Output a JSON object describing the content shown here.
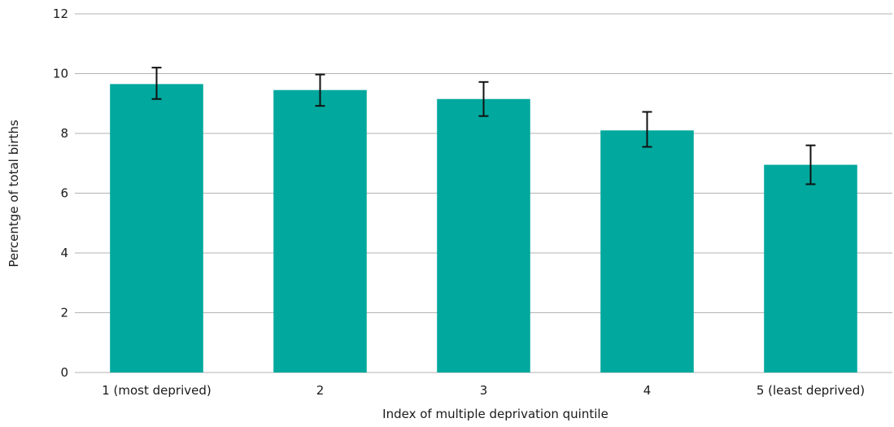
{
  "chart_data": {
    "type": "bar",
    "categories": [
      "1 (most deprived)",
      "2",
      "3",
      "4",
      "5 (least deprived)"
    ],
    "values": [
      9.65,
      9.45,
      9.15,
      8.1,
      6.95
    ],
    "error_low": [
      9.15,
      8.92,
      8.58,
      7.55,
      6.3
    ],
    "error_high": [
      10.2,
      9.97,
      9.72,
      8.72,
      7.6
    ],
    "xlabel": "Index of multiple deprivation quintile",
    "ylabel": "Percentge of total births",
    "ylim": [
      0,
      12
    ],
    "yticks": [
      "0",
      "2",
      "4",
      "6",
      "8",
      "10",
      "12"
    ],
    "grid": true,
    "legend": "none",
    "bar_color": "#00a89d"
  }
}
